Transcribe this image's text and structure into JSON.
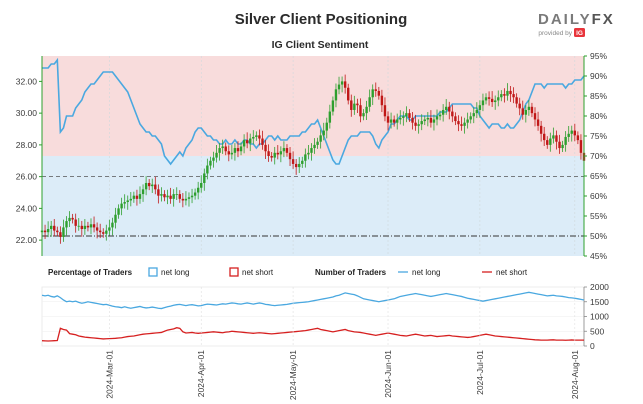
{
  "chart_data": {
    "type": "line",
    "title": "Silver Client Positioning",
    "subtitle": "IG Client Sentiment",
    "logo": {
      "text_a": "DAILY",
      "text_b": "FX",
      "provided_by": "provided by",
      "brand": "IG"
    },
    "colors": {
      "long": "#4aa8e0",
      "short": "#d62020",
      "bull": "#2e9f2e",
      "bear": "#c01818",
      "long_zone": "#dcecf8",
      "short_zone": "#f8dcdc",
      "axis": "#2ea02e"
    },
    "price_axis": {
      "ylim": [
        21.0,
        33.6
      ],
      "ticks": [
        "22.00",
        "24.00",
        "26.00",
        "28.00",
        "30.00",
        "32.00"
      ]
    },
    "sentiment_axis": {
      "ylim": [
        45,
        95
      ],
      "ticks": [
        "45%",
        "50%",
        "55%",
        "60%",
        "65%",
        "70%",
        "75%",
        "80%",
        "85%",
        "90%",
        "95%"
      ]
    },
    "reference_lines": {
      "price": 26.0,
      "sentiment": 50
    },
    "x_labels": [
      {
        "t": 22,
        "label": "2024-Mar-01"
      },
      {
        "t": 52,
        "label": "2024-Apr-01"
      },
      {
        "t": 82,
        "label": "2024-May-01"
      },
      {
        "t": 113,
        "label": "2024-Jun-01"
      },
      {
        "t": 143,
        "label": "2024-Jul-01"
      },
      {
        "t": 174,
        "label": "2024-Aug-01"
      }
    ],
    "x_range": [
      0,
      177
    ],
    "price_close": [
      22.6,
      22.5,
      22.7,
      22.9,
      22.6,
      22.5,
      22.2,
      22.8,
      23.2,
      23.4,
      23.3,
      22.9,
      22.9,
      22.7,
      22.9,
      22.8,
      23.0,
      22.8,
      22.6,
      22.5,
      22.4,
      22.6,
      22.8,
      23.1,
      23.6,
      24.0,
      24.3,
      24.4,
      24.5,
      24.6,
      24.8,
      24.6,
      24.9,
      25.2,
      25.6,
      25.4,
      25.5,
      25.2,
      24.8,
      24.9,
      24.7,
      24.8,
      24.6,
      24.9,
      24.9,
      24.6,
      24.5,
      24.6,
      24.7,
      24.8,
      25.0,
      25.3,
      25.6,
      26.2,
      26.7,
      27.0,
      27.2,
      27.5,
      27.8,
      27.9,
      27.6,
      27.4,
      27.5,
      27.8,
      27.6,
      27.9,
      28.3,
      28.1,
      28.4,
      28.5,
      28.6,
      28.4,
      28.0,
      27.6,
      27.3,
      27.2,
      27.5,
      27.4,
      27.6,
      27.8,
      27.5,
      27.1,
      26.8,
      26.6,
      26.8,
      27.0,
      27.4,
      27.5,
      27.8,
      28.0,
      28.2,
      28.6,
      28.9,
      29.4,
      30.1,
      30.8,
      31.5,
      31.8,
      32.0,
      31.6,
      30.8,
      30.2,
      30.6,
      30.5,
      29.8,
      30.0,
      30.4,
      31.0,
      31.5,
      31.4,
      31.1,
      30.5,
      29.8,
      29.4,
      29.6,
      29.4,
      29.6,
      29.7,
      29.8,
      30.0,
      29.7,
      29.4,
      29.2,
      29.3,
      29.5,
      29.6,
      29.7,
      29.4,
      29.6,
      29.8,
      29.9,
      30.2,
      30.4,
      30.1,
      29.8,
      29.5,
      29.3,
      29.2,
      29.4,
      29.6,
      29.8,
      30.0,
      30.2,
      30.5,
      30.8,
      31.0,
      30.9,
      30.7,
      30.8,
      31.0,
      31.2,
      31.1,
      31.4,
      31.2,
      31.0,
      30.6,
      30.3,
      29.9,
      30.2,
      30.4,
      30.0,
      29.6,
      29.2,
      28.7,
      28.3,
      28.0,
      28.4,
      28.6,
      28.2,
      27.8,
      28.0,
      28.5,
      28.7,
      28.9,
      28.6,
      28.3,
      27.5,
      27.0
    ],
    "pct_long": [
      92,
      92,
      92,
      93,
      93,
      94,
      76,
      77,
      80,
      80,
      80,
      82,
      83,
      84,
      86,
      87,
      88,
      88,
      89,
      90,
      91,
      91,
      91,
      91,
      90,
      89,
      88,
      87,
      86,
      84,
      82,
      80,
      78,
      77,
      76,
      76,
      75,
      75,
      74,
      73,
      70,
      69,
      68,
      69,
      70,
      71,
      70,
      72,
      73,
      74,
      76,
      77,
      77,
      76,
      75,
      75,
      74,
      74,
      73,
      73,
      74,
      73,
      73,
      74,
      73,
      73,
      74,
      74,
      73,
      73,
      72,
      73,
      73,
      74,
      75,
      75,
      74,
      75,
      74,
      74,
      74,
      75,
      75,
      75,
      75,
      76,
      76,
      77,
      78,
      78,
      79,
      77,
      75,
      73,
      71,
      69,
      68,
      68,
      70,
      72,
      74,
      75,
      75,
      75,
      76,
      76,
      76,
      76,
      75,
      73,
      72,
      74,
      75,
      76,
      78,
      78,
      79,
      80,
      80,
      80,
      79,
      79,
      80,
      80,
      80,
      80,
      80,
      80,
      80,
      80,
      81,
      81,
      81,
      82,
      83,
      83,
      83,
      83,
      83,
      83,
      83,
      82,
      82,
      80,
      79,
      78,
      77,
      78,
      78,
      78,
      77,
      77,
      78,
      77,
      77,
      78,
      79,
      81,
      83,
      84,
      86,
      88,
      88,
      88,
      87,
      88,
      88,
      88,
      88,
      88,
      88,
      87,
      88,
      88,
      89,
      89,
      89,
      90
    ],
    "lower_legend": {
      "percentage_title": "Percentage of Traders",
      "number_title": "Number of Traders",
      "net_long": "net long",
      "net_short": "net short"
    },
    "traders_axis": {
      "ylim": [
        0,
        2000
      ],
      "ticks": [
        "0",
        "500",
        "1000",
        "1500",
        "2000"
      ]
    },
    "traders_long": [
      1720,
      1700,
      1720,
      1680,
      1660,
      1700,
      1640,
      1560,
      1500,
      1520,
      1500,
      1520,
      1480,
      1450,
      1470,
      1500,
      1480,
      1460,
      1440,
      1420,
      1400,
      1410,
      1380,
      1350,
      1330,
      1320,
      1300,
      1330,
      1300,
      1280,
      1300,
      1320,
      1340,
      1310,
      1290,
      1300,
      1320,
      1300,
      1280,
      1270,
      1300,
      1330,
      1350,
      1380,
      1400,
      1410,
      1390,
      1370,
      1390,
      1400,
      1380,
      1360,
      1370,
      1400,
      1420,
      1410,
      1400,
      1390,
      1410,
      1430,
      1420,
      1440,
      1460,
      1450,
      1430,
      1420,
      1440,
      1460,
      1440,
      1420,
      1440,
      1460,
      1440,
      1410,
      1400,
      1380,
      1370,
      1380,
      1390,
      1400,
      1410,
      1430,
      1450,
      1460,
      1470,
      1480,
      1490,
      1500,
      1520,
      1540,
      1560,
      1580,
      1600,
      1620,
      1640,
      1660,
      1700,
      1720,
      1760,
      1800,
      1780,
      1760,
      1740,
      1700,
      1650,
      1600,
      1580,
      1560,
      1540,
      1520,
      1500,
      1520,
      1540,
      1560,
      1580,
      1600,
      1640,
      1680,
      1700,
      1720,
      1740,
      1760,
      1780,
      1760,
      1740,
      1720,
      1700,
      1680,
      1700,
      1720,
      1740,
      1760,
      1780,
      1760,
      1740,
      1720,
      1700,
      1680,
      1650,
      1620,
      1600,
      1580,
      1560,
      1540,
      1520,
      1540,
      1560,
      1580,
      1600,
      1620,
      1640,
      1660,
      1680,
      1700,
      1720,
      1740,
      1760,
      1780,
      1800,
      1820,
      1800,
      1780,
      1760,
      1740,
      1720,
      1700,
      1710,
      1720,
      1700,
      1690,
      1680,
      1660,
      1640,
      1630,
      1620,
      1600,
      1580,
      1560
    ],
    "traders_short": [
      180,
      175,
      170,
      175,
      180,
      185,
      600,
      560,
      540,
      420,
      400,
      380,
      340,
      320,
      300,
      290,
      280,
      270,
      260,
      250,
      240,
      245,
      250,
      255,
      260,
      270,
      280,
      300,
      320,
      330,
      340,
      360,
      380,
      400,
      410,
      420,
      430,
      440,
      450,
      460,
      500,
      540,
      560,
      580,
      620,
      600,
      480,
      440,
      450,
      460,
      440,
      430,
      440,
      450,
      460,
      470,
      480,
      470,
      460,
      450,
      470,
      480,
      500,
      490,
      480,
      470,
      460,
      450,
      440,
      430,
      440,
      450,
      440,
      430,
      420,
      410,
      420,
      430,
      440,
      450,
      460,
      470,
      480,
      490,
      500,
      510,
      520,
      540,
      560,
      580,
      600,
      560,
      540,
      520,
      500,
      480,
      500,
      520,
      540,
      560,
      520,
      500,
      480,
      470,
      460,
      440,
      420,
      400,
      380,
      360,
      380,
      400,
      420,
      440,
      420,
      400,
      380,
      360,
      350,
      340,
      360,
      380,
      400,
      380,
      360,
      340,
      350,
      360,
      340,
      320,
      330,
      340,
      350,
      360,
      340,
      330,
      320,
      310,
      300,
      290,
      300,
      320,
      340,
      360,
      380,
      400,
      380,
      360,
      340,
      330,
      320,
      310,
      300,
      290,
      280,
      270,
      260,
      250,
      240,
      230,
      220,
      210,
      205,
      200,
      200,
      200,
      205,
      210,
      200,
      200,
      200,
      195,
      200,
      205,
      200,
      200,
      200,
      200
    ]
  }
}
